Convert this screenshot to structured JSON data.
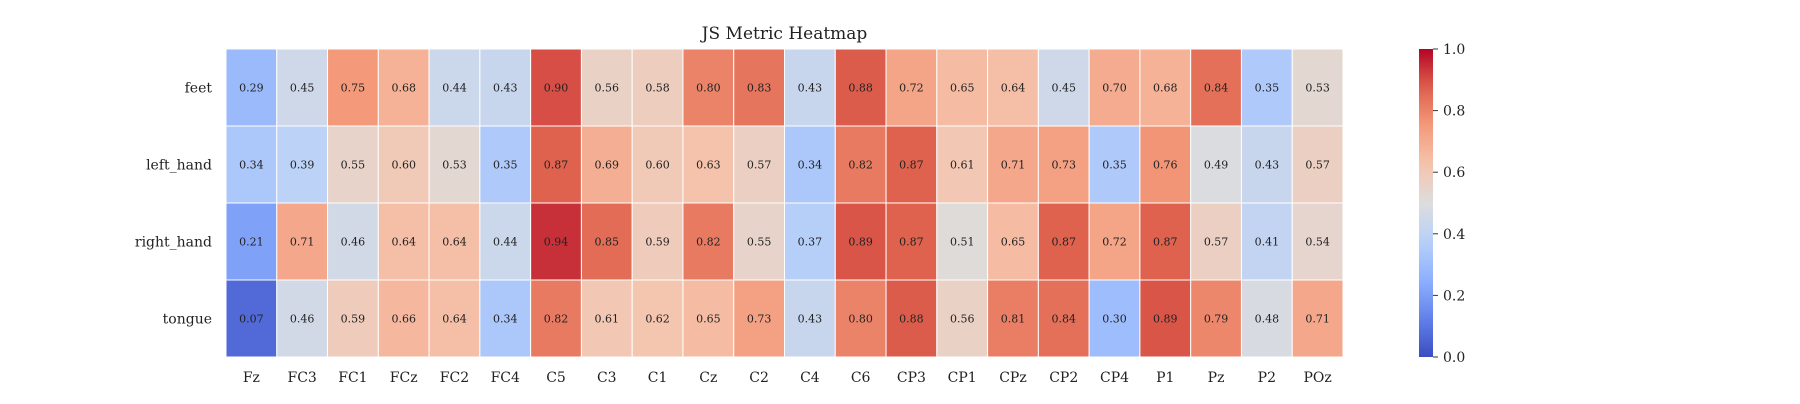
{
  "chart_data": {
    "type": "heatmap",
    "title": "JS Metric Heatmap",
    "xlabel": "",
    "ylabel": "",
    "x_categories": [
      "Fz",
      "FC3",
      "FC1",
      "FCz",
      "FC2",
      "FC4",
      "C5",
      "C3",
      "C1",
      "Cz",
      "C2",
      "C4",
      "C6",
      "CP3",
      "CP1",
      "CPz",
      "CP2",
      "CP4",
      "P1",
      "Pz",
      "P2",
      "POz"
    ],
    "y_categories": [
      "feet",
      "left_hand",
      "right_hand",
      "tongue"
    ],
    "values": [
      [
        0.29,
        0.45,
        0.75,
        0.68,
        0.44,
        0.43,
        0.9,
        0.56,
        0.58,
        0.8,
        0.83,
        0.43,
        0.88,
        0.72,
        0.65,
        0.64,
        0.45,
        0.7,
        0.68,
        0.84,
        0.35,
        0.53
      ],
      [
        0.34,
        0.39,
        0.55,
        0.6,
        0.53,
        0.35,
        0.87,
        0.69,
        0.6,
        0.63,
        0.57,
        0.34,
        0.82,
        0.87,
        0.61,
        0.71,
        0.73,
        0.35,
        0.76,
        0.49,
        0.43,
        0.57
      ],
      [
        0.21,
        0.71,
        0.46,
        0.64,
        0.64,
        0.44,
        0.94,
        0.85,
        0.59,
        0.82,
        0.55,
        0.37,
        0.89,
        0.87,
        0.51,
        0.65,
        0.87,
        0.72,
        0.87,
        0.57,
        0.41,
        0.54
      ],
      [
        0.07,
        0.46,
        0.59,
        0.66,
        0.64,
        0.34,
        0.82,
        0.61,
        0.62,
        0.65,
        0.73,
        0.43,
        0.8,
        0.88,
        0.56,
        0.81,
        0.84,
        0.3,
        0.89,
        0.79,
        0.48,
        0.71
      ]
    ],
    "value_format": "2 decimals",
    "colormap": "coolwarm",
    "colorbar": {
      "range": [
        0.0,
        1.0
      ],
      "ticks": [
        "0.0",
        "0.2",
        "0.4",
        "0.6",
        "0.8",
        "1.0"
      ]
    },
    "grid": false,
    "legend": "colorbar-right"
  }
}
